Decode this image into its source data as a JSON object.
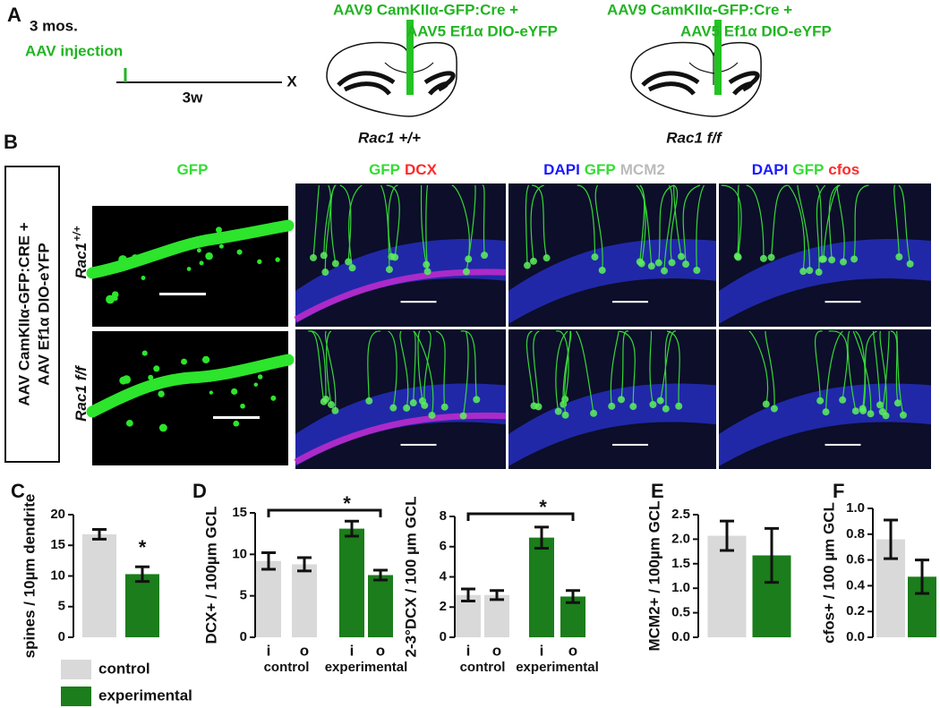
{
  "panel_a": {
    "letter": "A",
    "age": "3 mos.",
    "event": "AAV injection",
    "interval": "3w",
    "end": "X",
    "constructs": [
      {
        "line1": "AAV9 CamKIIα-GFP:Cre +",
        "line2": "AAV5 Ef1α DIO-eYFP",
        "genotype": "Rac1 +/+"
      },
      {
        "line1": "AAV9 CamKIIα-GFP:Cre +",
        "line2": "AAV5 Ef1α DIO-eYFP",
        "genotype": "Rac1 f/f"
      }
    ]
  },
  "panel_b": {
    "letter": "B",
    "box_label": [
      "AAV CamKIIα-GFP:CRE +",
      "AAV Ef1α DIO-eYFP"
    ],
    "row_labels": [
      {
        "gene": "Rac1",
        "genotype": "+/+"
      },
      {
        "gene": "Rac1",
        "genotype": "f/f"
      }
    ],
    "column_headers": [
      [
        {
          "text": "GFP",
          "color": "#33dd33"
        }
      ],
      [
        {
          "text": "GFP",
          "color": "#33dd33"
        },
        {
          "text": "DCX",
          "color": "#ff2a2a"
        }
      ],
      [
        {
          "text": "DAPI",
          "color": "#1a1aff"
        },
        {
          "text": "GFP",
          "color": "#33dd33"
        },
        {
          "text": "MCM2",
          "color": "#bbbbbb"
        }
      ],
      [
        {
          "text": "DAPI",
          "color": "#1a1aff"
        },
        {
          "text": "GFP",
          "color": "#33dd33"
        },
        {
          "text": "cfos",
          "color": "#ff2a2a"
        }
      ]
    ]
  },
  "chart_data": [
    {
      "type": "bar",
      "panel_label": "C",
      "ylabel": "spines / 10µm dendrite",
      "categories": [
        null,
        null
      ],
      "values": [
        16.8,
        10.3
      ],
      "errors": [
        0.8,
        1.2
      ],
      "colors": [
        "#d9d9d9",
        "#1b7d1b"
      ],
      "ylim": [
        0,
        20
      ],
      "yticks": [
        0,
        5,
        10,
        15,
        20
      ],
      "annotation": "*",
      "legend": [
        {
          "name": "control",
          "color": "#d9d9d9"
        },
        {
          "name": "experimental",
          "color": "#1b7d1b"
        }
      ]
    },
    {
      "type": "bar",
      "panel_label": "D",
      "ylabel": "DCX+ / 100µm GCL",
      "categories": [
        "i",
        "o",
        "i",
        "o"
      ],
      "groups": [
        "control",
        "experimental"
      ],
      "values": [
        9.2,
        8.8,
        13.1,
        7.5
      ],
      "errors": [
        1.0,
        0.8,
        0.9,
        0.6
      ],
      "colors": [
        "#d9d9d9",
        "#d9d9d9",
        "#1b7d1b",
        "#1b7d1b"
      ],
      "ylim": [
        0,
        15
      ],
      "yticks": [
        0,
        5,
        10,
        15
      ],
      "annotation": "*"
    },
    {
      "type": "bar",
      "ylabel": "2-3°DCX / 100 µm GCL",
      "categories": [
        "i",
        "o",
        "i",
        "o"
      ],
      "groups": [
        "control",
        "experimental"
      ],
      "values": [
        2.8,
        2.8,
        6.6,
        2.7
      ],
      "errors": [
        0.4,
        0.3,
        0.7,
        0.4
      ],
      "colors": [
        "#d9d9d9",
        "#d9d9d9",
        "#1b7d1b",
        "#1b7d1b"
      ],
      "ylim": [
        0,
        8
      ],
      "yticks": [
        0,
        2,
        4,
        6,
        8
      ],
      "annotation": "*"
    },
    {
      "type": "bar",
      "panel_label": "E",
      "ylabel": "MCM2+ / 100µm GCL",
      "categories": [
        null,
        null
      ],
      "values": [
        2.07,
        1.67
      ],
      "errors": [
        0.3,
        0.55
      ],
      "colors": [
        "#d9d9d9",
        "#1b7d1b"
      ],
      "ylim": [
        0,
        2.5
      ],
      "yticks": [
        {
          "value": 0,
          "label": "0.0"
        },
        0.5,
        {
          "value": 1,
          "label": "1.0"
        },
        1.5,
        {
          "value": 2,
          "label": "2.0"
        },
        2.5
      ]
    },
    {
      "type": "bar",
      "panel_label": "F",
      "ylabel": "cfos+ / 100 µm GCL",
      "categories": [
        null,
        null
      ],
      "values": [
        0.76,
        0.47
      ],
      "errors": [
        0.15,
        0.13
      ],
      "colors": [
        "#d9d9d9",
        "#1b7d1b"
      ],
      "ylim": [
        0,
        1
      ],
      "yticks": [
        {
          "value": 0,
          "label": "0.0"
        },
        0.2,
        0.4,
        0.6,
        0.8,
        {
          "value": 1,
          "label": "1.0"
        }
      ]
    }
  ]
}
